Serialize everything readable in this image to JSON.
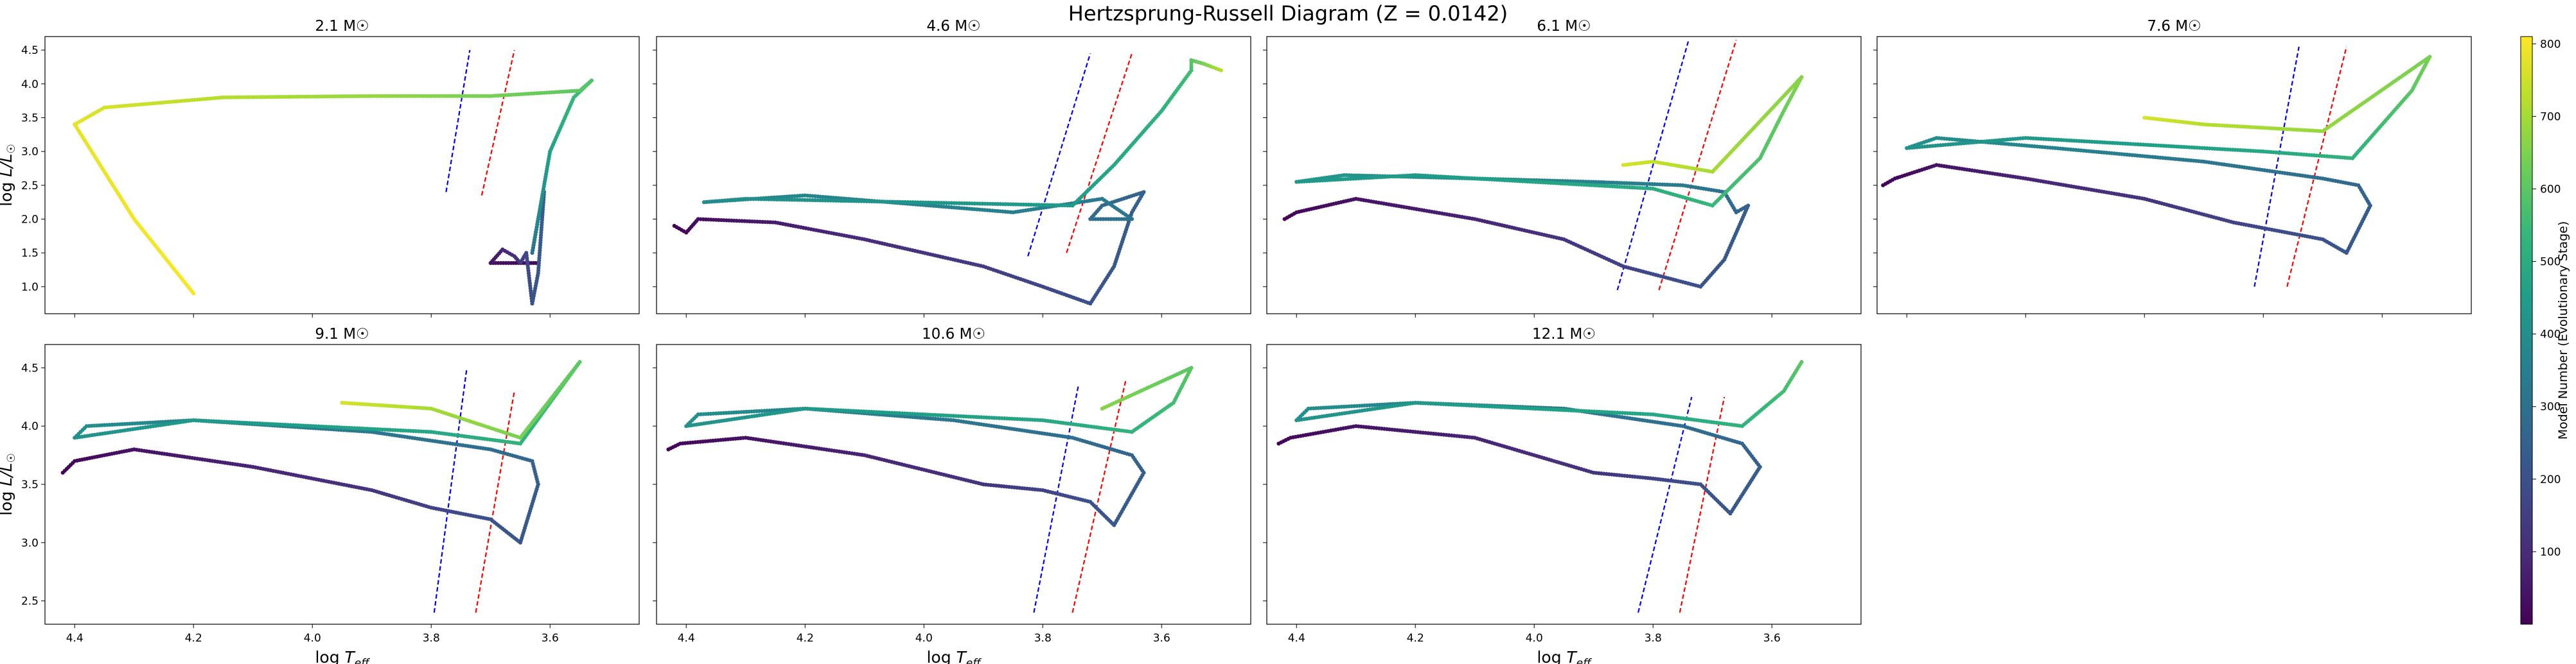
{
  "figure": {
    "title": "Hertzsprung-Russell Diagram (Z = 0.0142)",
    "colorbar_label": "Model Number (Evolutionary Stage)",
    "colorbar_ticks": [
      "100",
      "200",
      "300",
      "400",
      "500",
      "600",
      "700",
      "800"
    ],
    "colormap": [
      "#440154",
      "#482878",
      "#3e4a89",
      "#31688e",
      "#26828e",
      "#1f9e89",
      "#35b779",
      "#6ece58",
      "#b5de2b",
      "#fde725"
    ],
    "xlabel": "log T_eff",
    "ylabel": "log L/L☉",
    "strip_colors": {
      "blue": "#0000ff",
      "red": "#ff0000"
    }
  },
  "chart_data": [
    {
      "type": "line",
      "title": "2.1 M☉",
      "mass": "2.1",
      "xlim": [
        4.45,
        3.45
      ],
      "ylim": [
        0.6,
        4.7
      ],
      "x_reversed": true,
      "yticks": [
        1.0,
        1.5,
        2.0,
        2.5,
        3.0,
        3.5,
        4.0,
        4.5
      ],
      "xticks": [
        4.4,
        4.2,
        4.0,
        3.8,
        3.6
      ],
      "track": [
        [
          3.62,
          1.35,
          15
        ],
        [
          3.64,
          1.35,
          20
        ],
        [
          3.7,
          1.35,
          40
        ],
        [
          3.68,
          1.55,
          80
        ],
        [
          3.66,
          1.45,
          110
        ],
        [
          3.65,
          1.35,
          140
        ],
        [
          3.64,
          1.5,
          170
        ],
        [
          3.63,
          0.75,
          200
        ],
        [
          3.62,
          1.2,
          220
        ],
        [
          3.61,
          2.4,
          240
        ],
        [
          3.62,
          2.0,
          260
        ],
        [
          3.63,
          1.5,
          300
        ],
        [
          3.62,
          2.0,
          380
        ],
        [
          3.6,
          3.0,
          460
        ],
        [
          3.56,
          3.8,
          540
        ],
        [
          3.53,
          4.05,
          580
        ],
        [
          3.55,
          3.9,
          600
        ],
        [
          3.7,
          3.82,
          640
        ],
        [
          3.9,
          3.82,
          680
        ],
        [
          4.15,
          3.8,
          720
        ],
        [
          4.35,
          3.65,
          760
        ],
        [
          4.4,
          3.4,
          780
        ],
        [
          4.3,
          2.0,
          795
        ],
        [
          4.2,
          0.9,
          805
        ]
      ],
      "blue_edge": [
        [
          3.775,
          2.4
        ],
        [
          3.735,
          4.5
        ]
      ],
      "red_edge": [
        [
          3.715,
          2.35
        ],
        [
          3.66,
          4.5
        ]
      ]
    },
    {
      "type": "line",
      "title": "4.6 M☉",
      "mass": "4.6",
      "xlim": [
        4.45,
        3.45
      ],
      "ylim": [
        0.6,
        4.7
      ],
      "x_reversed": true,
      "yticks": [
        1.0,
        1.5,
        2.0,
        2.5,
        3.0,
        3.5,
        4.0,
        4.5
      ],
      "xticks": [
        4.4,
        4.2,
        4.0,
        3.8,
        3.6
      ],
      "track": [
        [
          4.42,
          1.9,
          5
        ],
        [
          4.4,
          1.8,
          15
        ],
        [
          4.38,
          2.0,
          30
        ],
        [
          4.25,
          1.95,
          60
        ],
        [
          4.1,
          1.7,
          100
        ],
        [
          3.9,
          1.3,
          140
        ],
        [
          3.8,
          1.0,
          170
        ],
        [
          3.72,
          0.75,
          200
        ],
        [
          3.68,
          1.3,
          220
        ],
        [
          3.65,
          2.1,
          240
        ],
        [
          3.63,
          2.4,
          255
        ],
        [
          3.7,
          2.2,
          270
        ],
        [
          3.72,
          2.0,
          290
        ],
        [
          3.65,
          2.0,
          310
        ],
        [
          3.7,
          2.3,
          330
        ],
        [
          3.85,
          2.1,
          350
        ],
        [
          4.2,
          2.35,
          370
        ],
        [
          4.37,
          2.25,
          385
        ],
        [
          4.3,
          2.3,
          400
        ],
        [
          3.75,
          2.2,
          440
        ],
        [
          3.68,
          2.8,
          480
        ],
        [
          3.6,
          3.6,
          520
        ],
        [
          3.55,
          4.2,
          560
        ],
        [
          3.55,
          4.35,
          600
        ],
        [
          3.53,
          4.3,
          640
        ],
        [
          3.5,
          4.2,
          720
        ]
      ],
      "blue_edge": [
        [
          3.825,
          1.45
        ],
        [
          3.72,
          4.45
        ]
      ],
      "red_edge": [
        [
          3.76,
          1.5
        ],
        [
          3.65,
          4.45
        ]
      ]
    },
    {
      "type": "line",
      "title": "6.1 M☉",
      "mass": "6.1",
      "xlim": [
        4.45,
        3.45
      ],
      "ylim": [
        0.6,
        4.7
      ],
      "x_reversed": true,
      "yticks": [
        1.0,
        1.5,
        2.0,
        2.5,
        3.0,
        3.5,
        4.0,
        4.5
      ],
      "xticks": [
        4.4,
        4.2,
        4.0,
        3.8,
        3.6
      ],
      "track": [
        [
          4.42,
          2.0,
          5
        ],
        [
          4.4,
          2.1,
          15
        ],
        [
          4.3,
          2.3,
          40
        ],
        [
          4.1,
          2.0,
          80
        ],
        [
          3.95,
          1.7,
          120
        ],
        [
          3.85,
          1.3,
          160
        ],
        [
          3.72,
          1.0,
          200
        ],
        [
          3.68,
          1.4,
          220
        ],
        [
          3.64,
          2.2,
          240
        ],
        [
          3.66,
          2.1,
          260
        ],
        [
          3.68,
          2.4,
          290
        ],
        [
          3.75,
          2.5,
          330
        ],
        [
          3.9,
          2.55,
          360
        ],
        [
          4.1,
          2.6,
          390
        ],
        [
          4.32,
          2.65,
          420
        ],
        [
          4.4,
          2.55,
          430
        ],
        [
          4.2,
          2.65,
          440
        ],
        [
          3.8,
          2.45,
          500
        ],
        [
          3.7,
          2.2,
          540
        ],
        [
          3.62,
          2.9,
          580
        ],
        [
          3.58,
          3.6,
          620
        ],
        [
          3.55,
          4.1,
          660
        ],
        [
          3.7,
          2.7,
          700
        ],
        [
          3.8,
          2.85,
          740
        ],
        [
          3.85,
          2.8,
          760
        ]
      ],
      "blue_edge": [
        [
          3.86,
          0.95
        ],
        [
          3.74,
          4.65
        ]
      ],
      "red_edge": [
        [
          3.79,
          0.95
        ],
        [
          3.66,
          4.65
        ]
      ]
    },
    {
      "type": "line",
      "title": "7.6 M☉",
      "mass": "7.6",
      "xlim": [
        4.45,
        3.45
      ],
      "ylim": [
        0.6,
        4.7
      ],
      "x_reversed": true,
      "yticks": [
        1.0,
        1.5,
        2.0,
        2.5,
        3.0,
        3.5,
        4.0,
        4.5
      ],
      "xticks": [
        4.4,
        4.2,
        4.0,
        3.8,
        3.6
      ],
      "track": [
        [
          4.44,
          2.5,
          5
        ],
        [
          4.42,
          2.6,
          15
        ],
        [
          4.35,
          2.8,
          40
        ],
        [
          4.2,
          2.6,
          80
        ],
        [
          4.0,
          2.3,
          120
        ],
        [
          3.85,
          1.95,
          160
        ],
        [
          3.7,
          1.7,
          200
        ],
        [
          3.66,
          1.5,
          220
        ],
        [
          3.62,
          2.2,
          240
        ],
        [
          3.64,
          2.5,
          260
        ],
        [
          3.7,
          2.6,
          290
        ],
        [
          3.9,
          2.85,
          320
        ],
        [
          4.15,
          3.05,
          360
        ],
        [
          4.35,
          3.2,
          400
        ],
        [
          4.4,
          3.05,
          410
        ],
        [
          4.2,
          3.2,
          430
        ],
        [
          3.8,
          3.0,
          480
        ],
        [
          3.65,
          2.9,
          520
        ],
        [
          3.6,
          3.4,
          560
        ],
        [
          3.55,
          3.9,
          600
        ],
        [
          3.52,
          4.4,
          640
        ],
        [
          3.7,
          3.3,
          680
        ],
        [
          3.9,
          3.4,
          720
        ],
        [
          4.0,
          3.5,
          760
        ]
      ],
      "blue_edge": [
        [
          3.815,
          1.0
        ],
        [
          3.74,
          4.55
        ]
      ],
      "red_edge": [
        [
          3.76,
          1.0
        ],
        [
          3.66,
          4.55
        ]
      ]
    },
    {
      "type": "line",
      "title": "9.1 M☉",
      "mass": "9.1",
      "xlim": [
        4.45,
        3.45
      ],
      "ylim": [
        2.3,
        4.7
      ],
      "x_reversed": true,
      "yticks": [
        2.5,
        3.0,
        3.5,
        4.0,
        4.5
      ],
      "xticks": [
        4.4,
        4.2,
        4.0,
        3.8,
        3.6
      ],
      "track": [
        [
          4.42,
          3.6,
          5
        ],
        [
          4.4,
          3.7,
          15
        ],
        [
          4.3,
          3.8,
          40
        ],
        [
          4.1,
          3.65,
          80
        ],
        [
          3.9,
          3.45,
          120
        ],
        [
          3.8,
          3.3,
          160
        ],
        [
          3.7,
          3.2,
          200
        ],
        [
          3.65,
          3.0,
          220
        ],
        [
          3.62,
          3.5,
          240
        ],
        [
          3.63,
          3.7,
          260
        ],
        [
          3.7,
          3.8,
          290
        ],
        [
          3.9,
          3.95,
          320
        ],
        [
          4.2,
          4.05,
          360
        ],
        [
          4.38,
          4.0,
          400
        ],
        [
          4.4,
          3.9,
          410
        ],
        [
          4.2,
          4.05,
          430
        ],
        [
          3.8,
          3.95,
          480
        ],
        [
          3.65,
          3.85,
          520
        ],
        [
          3.6,
          4.2,
          560
        ],
        [
          3.55,
          4.55,
          600
        ],
        [
          3.65,
          3.9,
          640
        ],
        [
          3.8,
          4.15,
          700
        ],
        [
          3.95,
          4.2,
          760
        ]
      ],
      "blue_edge": [
        [
          3.795,
          2.4
        ],
        [
          3.74,
          4.5
        ]
      ],
      "red_edge": [
        [
          3.725,
          2.4
        ],
        [
          3.66,
          4.3
        ]
      ]
    },
    {
      "type": "line",
      "title": "10.6 M☉",
      "mass": "10.6",
      "xlim": [
        4.45,
        3.45
      ],
      "ylim": [
        2.3,
        4.7
      ],
      "x_reversed": true,
      "yticks": [
        2.5,
        3.0,
        3.5,
        4.0,
        4.5
      ],
      "xticks": [
        4.4,
        4.2,
        4.0,
        3.8,
        3.6
      ],
      "track": [
        [
          4.43,
          3.8,
          5
        ],
        [
          4.41,
          3.85,
          15
        ],
        [
          4.3,
          3.9,
          40
        ],
        [
          4.1,
          3.75,
          80
        ],
        [
          3.9,
          3.5,
          120
        ],
        [
          3.8,
          3.45,
          160
        ],
        [
          3.72,
          3.35,
          200
        ],
        [
          3.68,
          3.15,
          220
        ],
        [
          3.63,
          3.6,
          240
        ],
        [
          3.65,
          3.75,
          260
        ],
        [
          3.75,
          3.9,
          290
        ],
        [
          3.95,
          4.05,
          320
        ],
        [
          4.2,
          4.15,
          360
        ],
        [
          4.38,
          4.1,
          400
        ],
        [
          4.4,
          4.0,
          410
        ],
        [
          4.2,
          4.15,
          430
        ],
        [
          3.8,
          4.05,
          480
        ],
        [
          3.65,
          3.95,
          520
        ],
        [
          3.58,
          4.2,
          560
        ],
        [
          3.55,
          4.5,
          600
        ],
        [
          3.7,
          4.15,
          660
        ]
      ],
      "blue_edge": [
        [
          3.815,
          2.4
        ],
        [
          3.74,
          4.35
        ]
      ],
      "red_edge": [
        [
          3.75,
          2.4
        ],
        [
          3.66,
          4.4
        ]
      ]
    },
    {
      "type": "line",
      "title": "12.1 M☉",
      "mass": "12.1",
      "xlim": [
        4.45,
        3.45
      ],
      "ylim": [
        2.3,
        4.7
      ],
      "x_reversed": true,
      "yticks": [
        2.5,
        3.0,
        3.5,
        4.0,
        4.5
      ],
      "xticks": [
        4.4,
        4.2,
        4.0,
        3.8,
        3.6
      ],
      "track": [
        [
          4.43,
          3.85,
          5
        ],
        [
          4.41,
          3.9,
          15
        ],
        [
          4.3,
          4.0,
          40
        ],
        [
          4.1,
          3.9,
          80
        ],
        [
          3.9,
          3.6,
          120
        ],
        [
          3.8,
          3.55,
          160
        ],
        [
          3.72,
          3.5,
          200
        ],
        [
          3.67,
          3.25,
          220
        ],
        [
          3.62,
          3.65,
          240
        ],
        [
          3.65,
          3.85,
          260
        ],
        [
          3.75,
          4.0,
          290
        ],
        [
          3.95,
          4.15,
          320
        ],
        [
          4.2,
          4.2,
          360
        ],
        [
          4.38,
          4.15,
          400
        ],
        [
          4.4,
          4.05,
          410
        ],
        [
          4.2,
          4.2,
          430
        ],
        [
          3.8,
          4.1,
          480
        ],
        [
          3.65,
          4.0,
          520
        ],
        [
          3.58,
          4.3,
          560
        ],
        [
          3.55,
          4.55,
          600
        ]
      ],
      "blue_edge": [
        [
          3.825,
          2.4
        ],
        [
          3.735,
          4.25
        ]
      ],
      "red_edge": [
        [
          3.755,
          2.4
        ],
        [
          3.68,
          4.25
        ]
      ]
    }
  ]
}
